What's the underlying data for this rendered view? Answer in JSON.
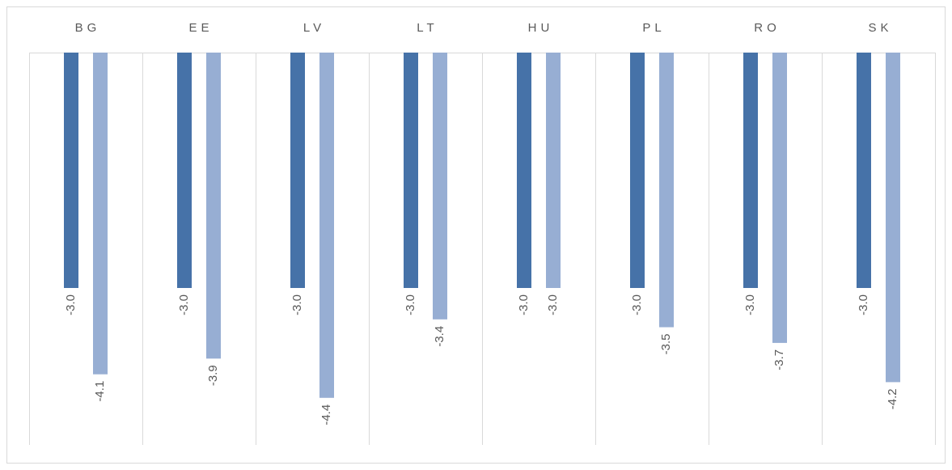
{
  "chart_data": {
    "type": "bar",
    "categories": [
      "BG",
      "EE",
      "LV",
      "LT",
      "HU",
      "PL",
      "RO",
      "SK"
    ],
    "series": [
      {
        "color": "#4672a8",
        "values": [
          -3.0,
          -3.0,
          -3.0,
          -3.0,
          -3.0,
          -3.0,
          -3.0,
          -3.0
        ],
        "value_labels": [
          "-3.0",
          "-3.0",
          "-3.0",
          "-3.0",
          "-3.0",
          "-3.0",
          "-3.0",
          "-3.0"
        ]
      },
      {
        "color": "#97aed3",
        "values": [
          -4.1,
          -3.9,
          -4.4,
          -3.4,
          -3.0,
          -3.5,
          -3.7,
          -4.2
        ],
        "value_labels": [
          "-4.1",
          "-3.9",
          "-4.4",
          "-3.4",
          "-3.0",
          "-3.5",
          "-3.7",
          "-4.2"
        ]
      }
    ],
    "ylim": [
      -5,
      0
    ]
  }
}
